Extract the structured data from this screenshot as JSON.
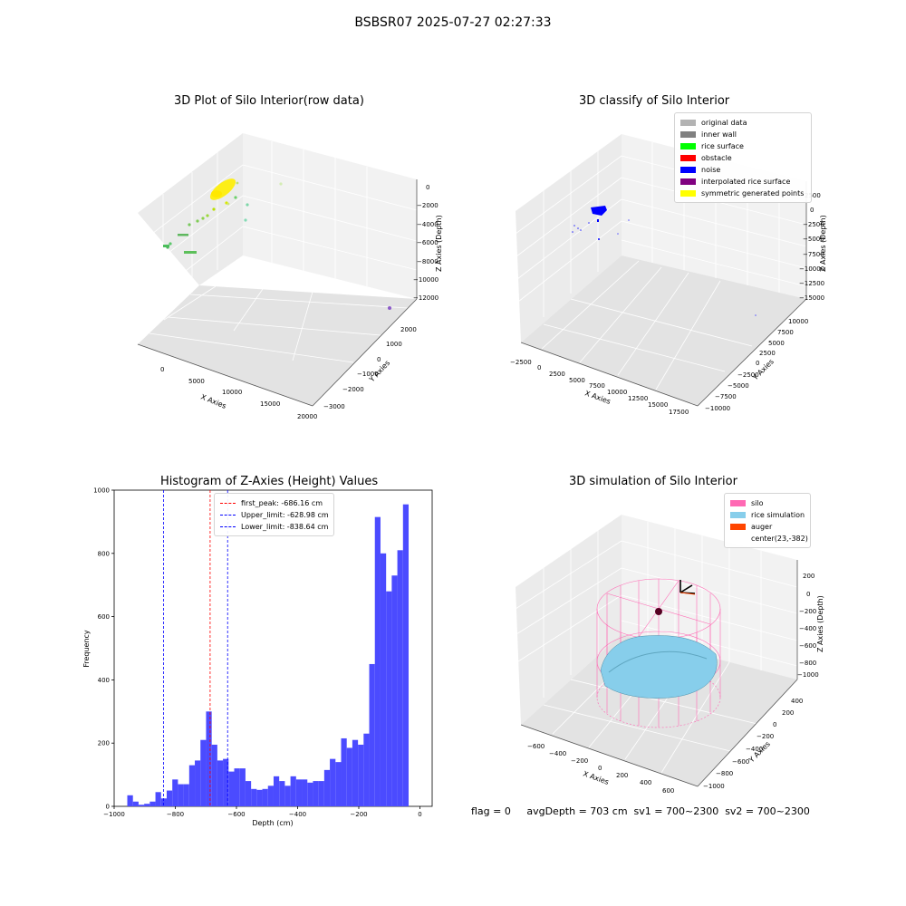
{
  "suptitle": "BSBSR07 2025-07-27 02:27:33",
  "footer": "flag = 0     avgDepth = 703 cm  sv1 = 700~2300  sv2 = 700~2300",
  "colors": {
    "original": "#b3b3b3",
    "inner_wall": "#808080",
    "rice": "#00ff00",
    "obstacle": "#ff0000",
    "noise": "#0000ff",
    "interp": "#800080",
    "sym": "#ffff00",
    "hist": "#4b4bff",
    "silo": "#ff69b4",
    "rice_sim": "#87ceeb",
    "auger": "#ff4500"
  },
  "chart_data": [
    {
      "type": "scatter3d",
      "title": "3D Plot of Silo Interior(row data)",
      "xlabel": "X Axies",
      "ylabel": "Y Axies",
      "zlabel": "Z Axies (Depth)",
      "x_ticks": [
        "0",
        "5000",
        "10000",
        "15000",
        "20000"
      ],
      "y_ticks": [
        "−3000",
        "−2000",
        "−1000",
        "0",
        "1000",
        "2000"
      ],
      "z_ticks": [
        "0",
        "−2000",
        "−4000",
        "−6000",
        "−8000",
        "−10000",
        "−12000"
      ],
      "grid": true
    },
    {
      "type": "scatter3d",
      "title": "3D classify of Silo Interior",
      "xlabel": "X Axies",
      "ylabel": "Y Axies",
      "zlabel": "Z Axies (Depth)",
      "x_ticks": [
        "−2500",
        "0",
        "2500",
        "5000",
        "7500",
        "10000",
        "12500",
        "15000",
        "17500"
      ],
      "y_ticks": [
        "−10000",
        "−7500",
        "−5000",
        "−2500",
        "0",
        "2500",
        "5000",
        "7500",
        "10000"
      ],
      "z_ticks": [
        "2500",
        "0",
        "−2500",
        "−5000",
        "−7500",
        "−10000",
        "−12500",
        "−15000"
      ],
      "legend": [
        "original data",
        "inner wall",
        "rice surface",
        "obstacle",
        "noise",
        "interpolated rice surface",
        "symmetric generated points"
      ],
      "legend_loc": "upper right",
      "grid": true
    },
    {
      "type": "bar",
      "title": "Histogram of Z-Axies (Height) Values",
      "xlabel": "Depth (cm)",
      "ylabel": "Frequency",
      "xlim": [
        -1000,
        40
      ],
      "ylim": [
        0,
        1000
      ],
      "x_ticks": [
        -1000,
        -800,
        -600,
        -400,
        -200,
        0
      ],
      "y_ticks": [
        0,
        200,
        400,
        600,
        800,
        1000
      ],
      "bin_start": -957,
      "bin_width": 18.4,
      "values": [
        35,
        15,
        5,
        8,
        15,
        45,
        25,
        50,
        85,
        70,
        70,
        130,
        145,
        210,
        300,
        195,
        145,
        150,
        110,
        120,
        120,
        80,
        55,
        52,
        55,
        65,
        95,
        80,
        65,
        95,
        85,
        85,
        75,
        80,
        80,
        115,
        150,
        140,
        215,
        185,
        210,
        195,
        230,
        450,
        915,
        800,
        680,
        730,
        810,
        955
      ],
      "vlines": [
        {
          "x": -686.16,
          "label": "first_peak: -686.16 cm",
          "color": "#ff0000"
        },
        {
          "x": -628.98,
          "label": "Upper_limit: -628.98 cm",
          "color": "#0000ff"
        },
        {
          "x": -838.64,
          "label": "Lower_limit: -838.64 cm",
          "color": "#0000ff"
        }
      ],
      "legend_loc": "upper center",
      "grid": false
    },
    {
      "type": "surface3d",
      "title": "3D simulation of Silo Interior",
      "xlabel": "X Axies",
      "ylabel": "Y Axies",
      "zlabel": "Z Axies (Depth)",
      "x_ticks": [
        "−600",
        "−400",
        "−200",
        "0",
        "200",
        "400",
        "600"
      ],
      "y_ticks": [
        "−1000",
        "−800",
        "−600",
        "−400",
        "−200",
        "0",
        "200",
        "400"
      ],
      "z_ticks": [
        "200",
        "0",
        "−200",
        "−400",
        "−600",
        "−800",
        "−1000"
      ],
      "legend": [
        "silo",
        "rice simulation",
        "auger",
        "center(23,-382)"
      ],
      "legend_loc": "upper right",
      "grid": true
    }
  ]
}
